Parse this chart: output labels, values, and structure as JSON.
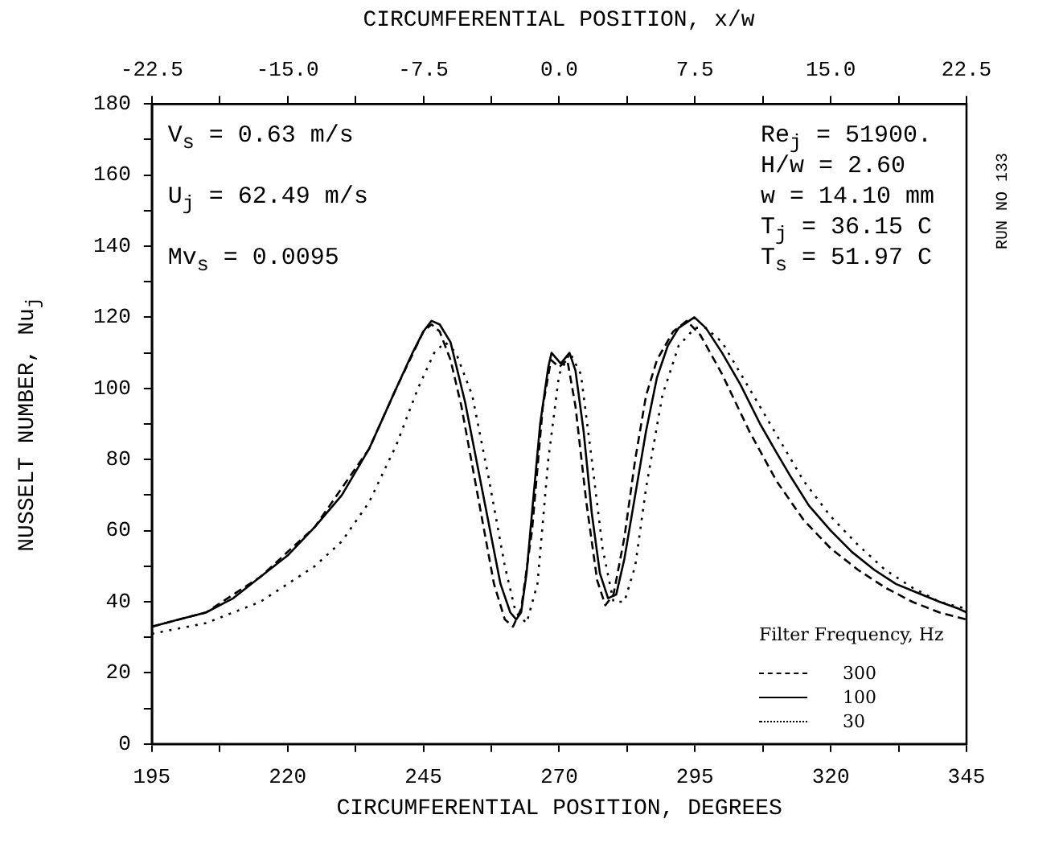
{
  "chart_data": {
    "type": "line",
    "xlabel": "CIRCUMFERENTIAL POSITION, DEGREES",
    "x2label": "CIRCUMFERENTIAL POSITION, x/w",
    "ylabel": "NUSSELT NUMBER, Nu$_{j}$",
    "legend_title": "Filter Frequency, Hz",
    "legend": "bottom right",
    "grid": false,
    "marker": "none",
    "xlim": [
      195,
      345
    ],
    "xticks": [
      195,
      {
        "value": 207.5,
        "label": null
      },
      220,
      {
        "value": 232.5,
        "label": null
      },
      245,
      {
        "value": 257.5,
        "label": null
      },
      270,
      {
        "value": 282.5,
        "label": null
      },
      295,
      {
        "value": 307.5,
        "label": null
      },
      320,
      {
        "value": 332.5,
        "label": null
      },
      345
    ],
    "x2lim": [
      -22.5,
      22.5
    ],
    "x2ticks": [
      -22.5,
      {
        "value": -18.75,
        "label": null
      },
      {
        "value": -15,
        "label": "-15.0"
      },
      {
        "value": -11.25,
        "label": null
      },
      -7.5,
      {
        "value": -3.75,
        "label": null
      },
      {
        "value": 0,
        "label": "0.0"
      },
      {
        "value": 3.75,
        "label": null
      },
      7.5,
      {
        "value": 11.25,
        "label": null
      },
      {
        "value": 15,
        "label": "15.0"
      },
      {
        "value": 18.75,
        "label": null
      },
      22.5
    ],
    "ylim": [
      0,
      180
    ],
    "yticks": [
      0,
      {
        "value": 10,
        "label": null
      },
      20,
      {
        "value": 30,
        "label": null
      },
      40,
      {
        "value": 50,
        "label": null
      },
      60,
      {
        "value": 70,
        "label": null
      },
      80,
      {
        "value": 90,
        "label": null
      },
      100,
      {
        "value": 110,
        "label": null
      },
      120,
      {
        "value": 130,
        "label": null
      },
      140,
      {
        "value": 150,
        "label": null
      },
      160,
      {
        "value": 170,
        "label": null
      },
      180
    ],
    "annotations": [
      "V$_{s}$ = 0.63 m/s",
      "U$_{j}$ = 62.49 m/s",
      "Mv$_{s}$ = 0.0095",
      "Re$_{j}$ = 51900.",
      "H/w = 2.60",
      "w = 14.10 mm",
      "T$_{j}$ = 36.15 C",
      "T$_{s}$ = 51.97 C",
      "RUN NO 133"
    ],
    "series": [
      {
        "name": "300",
        "color": "#000000",
        "line_style": "dashed",
        "x": [
          195,
          205,
          215,
          225,
          235,
          240,
          245,
          246.5,
          248,
          250,
          252,
          255,
          258,
          260,
          261.5,
          263,
          265,
          267,
          268.5,
          270,
          271.5,
          273,
          275,
          277,
          278.5,
          280,
          282,
          284,
          286,
          288,
          291,
          293.5,
          296,
          300,
          305,
          310,
          315,
          320,
          325,
          330,
          335,
          340,
          345
        ],
        "values": [
          33,
          37,
          47,
          61,
          83,
          100,
          116,
          118,
          116,
          108,
          95,
          70,
          45,
          35,
          33,
          38,
          60,
          95,
          108,
          106,
          108,
          95,
          68,
          46,
          39,
          42,
          58,
          80,
          98,
          108,
          116,
          119,
          115,
          104,
          88,
          74,
          63,
          55,
          49,
          44,
          40,
          37,
          35
        ]
      },
      {
        "name": "100",
        "color": "#000000",
        "line_style": "solid",
        "x": [
          195,
          200,
          205,
          210,
          215,
          220,
          225,
          230,
          235,
          240,
          243,
          245,
          246.5,
          248,
          250,
          252.7,
          256.4,
          259.2,
          261,
          262.1,
          263,
          264,
          265,
          266.5,
          268,
          268.6,
          270.3,
          271.9,
          273,
          274.5,
          276,
          277.5,
          279,
          280.5,
          282,
          284,
          286,
          288,
          290,
          292,
          294.9,
          297,
          300,
          303.4,
          307,
          310,
          312.7,
          316,
          320,
          323.9,
          328,
          332,
          335.2,
          340,
          343.6,
          345
        ],
        "values": [
          33,
          35,
          37,
          41,
          47,
          53,
          61,
          70,
          83,
          100,
          110,
          116,
          119,
          118,
          113,
          96,
          67,
          45,
          37,
          35,
          37,
          48,
          65,
          90,
          106,
          110,
          107,
          110,
          105,
          88,
          65,
          48,
          41,
          42,
          52,
          70,
          88,
          103,
          112,
          117,
          120,
          117,
          110,
          101,
          90,
          82,
          75,
          67,
          60,
          54,
          49,
          45,
          43,
          40,
          38,
          37
        ]
      },
      {
        "name": "30",
        "color": "#000000",
        "line_style": "dotted",
        "x": [
          195,
          205,
          215,
          225,
          230,
          235,
          240,
          244,
          247,
          249,
          251,
          254,
          257,
          260,
          262,
          264,
          266,
          268,
          270,
          272,
          274,
          276,
          278,
          280,
          282,
          284,
          286,
          289,
          292,
          295,
          297,
          300,
          305,
          310,
          315,
          320,
          325,
          330,
          335,
          340,
          345
        ],
        "values": [
          31,
          34,
          40,
          50,
          57,
          68,
          84,
          100,
          110,
          113,
          110,
          98,
          75,
          50,
          37,
          34,
          45,
          80,
          104,
          110,
          104,
          80,
          55,
          40,
          40,
          50,
          72,
          98,
          112,
          117,
          117,
          113,
          100,
          87,
          74,
          64,
          56,
          49,
          44,
          40,
          38
        ]
      }
    ]
  }
}
